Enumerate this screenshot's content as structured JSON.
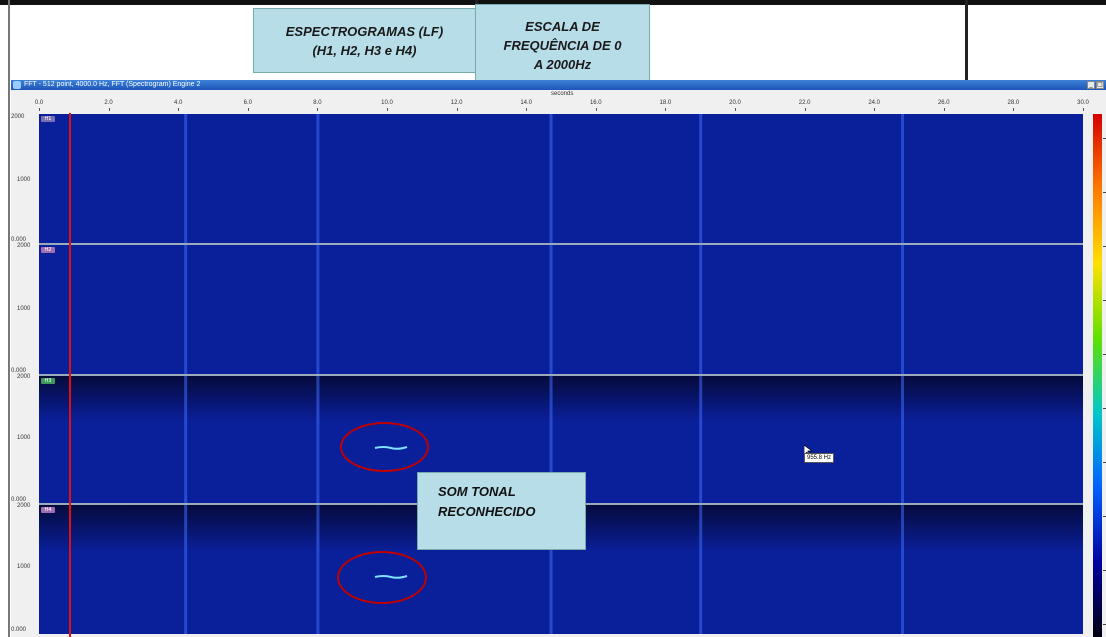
{
  "annotations": {
    "spectrograms_line1": "ESPECTROGRAMAS (LF)",
    "spectrograms_line2": "(H1, H2, H3 e H4)",
    "scale_line1": "ESCALA DE",
    "scale_line2": "FREQUÊNCIA DE 0",
    "scale_line3": "A 2000Hz",
    "tonal_line1": "SOM TONAL",
    "tonal_line2": "RECONHECIDO"
  },
  "window": {
    "title": "FFT - 512 point, 4000.0 Hz, FFT (Spectrogram) Engine 2",
    "minimize_glyph": "_",
    "close_glyph": "□"
  },
  "x_axis": {
    "title": "seconds",
    "ticks": [
      "0.0",
      "2.0",
      "4.0",
      "6.0",
      "8.0",
      "10.0",
      "12.0",
      "14.0",
      "16.0",
      "18.0",
      "20.0",
      "22.0",
      "24.0",
      "26.0",
      "28.0",
      "30.0"
    ]
  },
  "panels": [
    {
      "label": "H1",
      "label_color": "#7a6fb0",
      "y_top": "2000",
      "y_mid": "1000",
      "y_bottom": "0.000"
    },
    {
      "label": "H2",
      "label_color": "#a06fb0",
      "y_top": "2000",
      "y_mid": "1000",
      "y_bottom": "0.000"
    },
    {
      "label": "H3",
      "label_color": "#3f9a5a",
      "y_top": "2000",
      "y_mid": "1000",
      "y_bottom": "0.000"
    },
    {
      "label": "H4",
      "label_color": "#a06fb0",
      "y_top": "2000",
      "y_mid": "1000",
      "y_bottom": "0.000"
    }
  ],
  "cursor_readout": "955.8 Hz",
  "colors": {
    "spectrogram_bg": "#0a1f9a",
    "marker_line": "#e01010",
    "ellipse": "#c00000",
    "callout_bg": "#b7dde8"
  },
  "icons": {
    "window": "spectrogram-window-icon",
    "cursor": "mouse-pointer-icon"
  }
}
